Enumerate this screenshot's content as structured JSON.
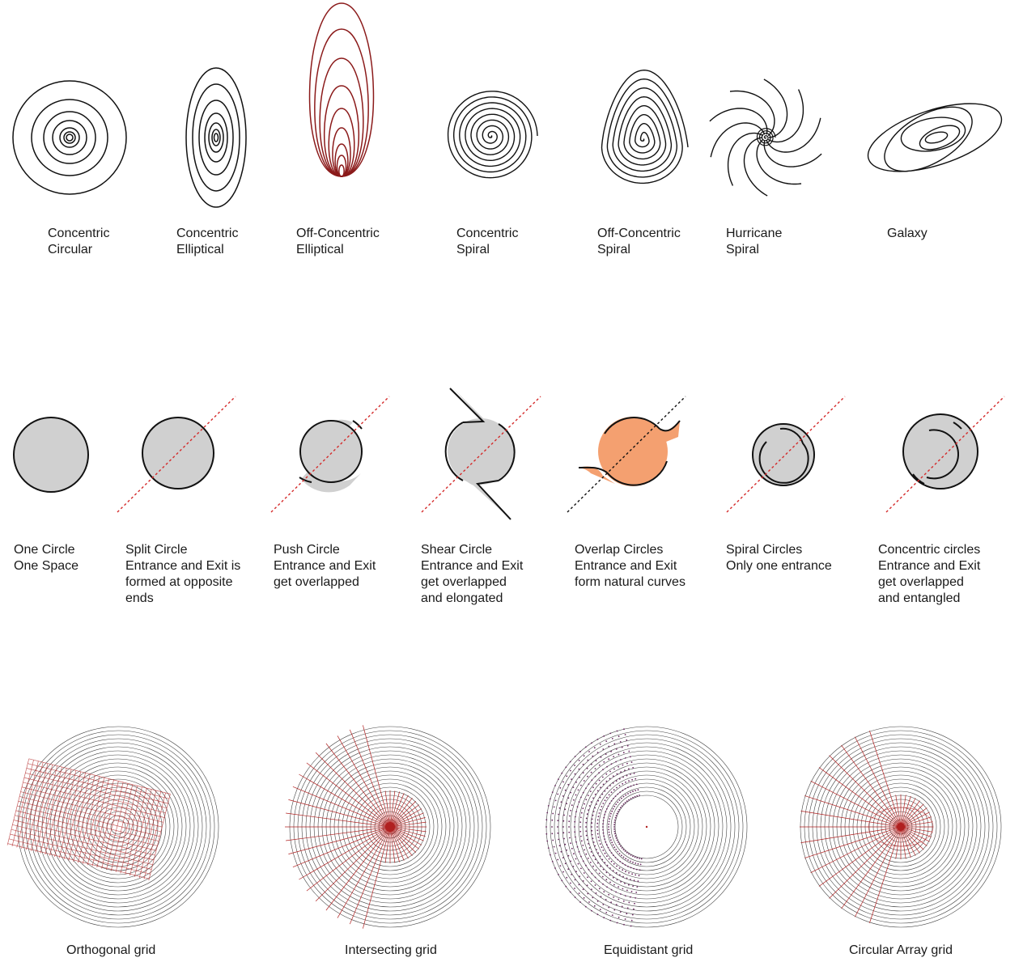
{
  "row1": [
    {
      "id": "concentric-circular",
      "lines": [
        "Concentric",
        "Circular"
      ]
    },
    {
      "id": "concentric-elliptical",
      "lines": [
        "Concentric",
        "Elliptical"
      ]
    },
    {
      "id": "off-concentric-elliptical",
      "lines": [
        "Off-Concentric",
        "Elliptical"
      ]
    },
    {
      "id": "concentric-spiral",
      "lines": [
        "Concentric",
        "Spiral"
      ]
    },
    {
      "id": "off-concentric-spiral",
      "lines": [
        "Off-Concentric",
        "Spiral"
      ]
    },
    {
      "id": "hurricane-spiral",
      "lines": [
        "Hurricane",
        "Spiral"
      ]
    },
    {
      "id": "galaxy",
      "lines": [
        "Galaxy"
      ]
    }
  ],
  "row2": [
    {
      "id": "one-circle",
      "lines": [
        "One Circle",
        "One Space"
      ]
    },
    {
      "id": "split-circle",
      "lines": [
        "Split Circle",
        "Entrance and Exit is",
        "formed at opposite",
        "ends"
      ]
    },
    {
      "id": "push-circle",
      "lines": [
        "Push Circle",
        "Entrance and Exit",
        "get overlapped"
      ]
    },
    {
      "id": "shear-circle",
      "lines": [
        "Shear Circle",
        "Entrance and Exit",
        "get overlapped",
        "and elongated"
      ]
    },
    {
      "id": "overlap-circles",
      "lines": [
        "Overlap Circles",
        "Entrance and Exit",
        "form natural curves"
      ]
    },
    {
      "id": "spiral-circles",
      "lines": [
        "Spiral Circles",
        "Only one entrance"
      ]
    },
    {
      "id": "concentric-circles",
      "lines": [
        "Concentric circles",
        "Entrance and Exit",
        "get overlapped",
        "and entangled"
      ]
    }
  ],
  "row3": [
    {
      "id": "orthogonal-grid",
      "label": "Orthogonal grid"
    },
    {
      "id": "intersecting-grid",
      "label": "Intersecting grid"
    },
    {
      "id": "equidistant-grid",
      "label": "Equidistant grid"
    },
    {
      "id": "circular-array-grid",
      "label": "Circular Array grid"
    }
  ],
  "colors": {
    "line": "#111111",
    "maroon": "#8b1a1a",
    "gray_fill": "#d0d0d0",
    "orange_fill": "#f4a070",
    "red_dash": "#d42a2a",
    "grid_red": "#b02020"
  }
}
